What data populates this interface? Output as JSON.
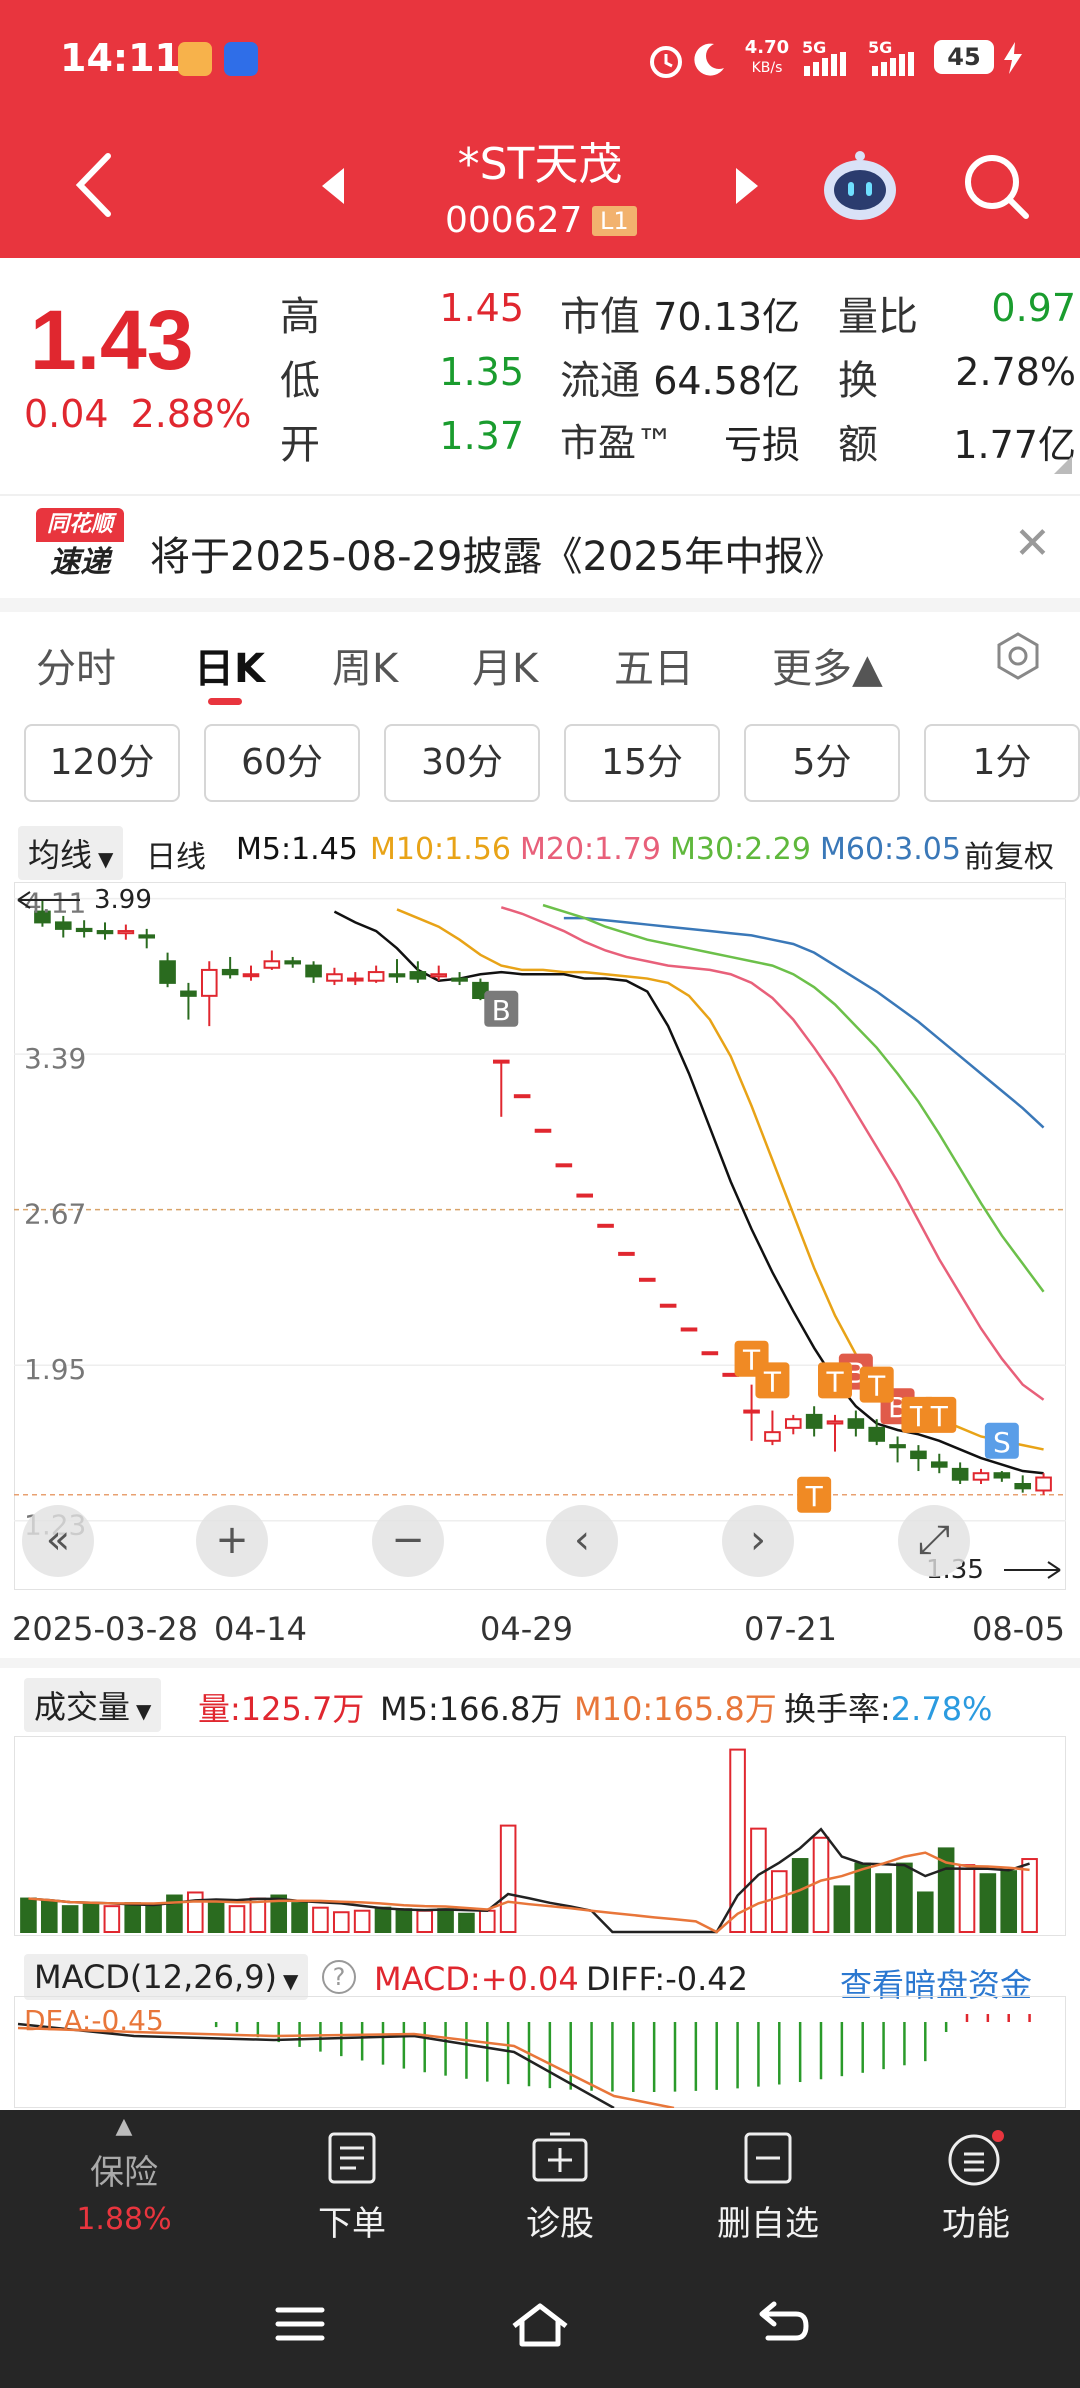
{
  "status_bar": {
    "time": "14:11",
    "network_speed_value": "4.70",
    "network_speed_unit": "KB/s",
    "sim1": "5G",
    "sim2": "5G",
    "battery": "45"
  },
  "header": {
    "stock_name": "*ST天茂",
    "stock_code": "000627",
    "level_badge": "L1"
  },
  "quote": {
    "price": "1.43",
    "change": "0.04",
    "change_pct": "2.88%",
    "rows": [
      {
        "l1": "高",
        "v1": "1.45",
        "c1": "red",
        "l2": "市值",
        "v2": "70.13亿",
        "l3": "量比",
        "v3": "0.97",
        "c3": "green"
      },
      {
        "l1": "低",
        "v1": "1.35",
        "c1": "green",
        "l2": "流通",
        "v2": "64.58亿",
        "l3": "换",
        "v3": "2.78%",
        "c3": "dark"
      },
      {
        "l1": "开",
        "v1": "1.37",
        "c1": "green",
        "l2": "市盈™",
        "v2": "亏损",
        "l3": "额",
        "v3": "1.77亿",
        "c3": "dark"
      }
    ]
  },
  "news": {
    "logo_top": "同花顺",
    "logo_bottom": "速递",
    "text": "将于2025-08-29披露《2025年中报》"
  },
  "tabs": [
    "分时",
    "日K",
    "周K",
    "月K",
    "五日",
    "更多▲"
  ],
  "active_tab": "日K",
  "periods": [
    "120分",
    "60分",
    "30分",
    "15分",
    "5分",
    "1分"
  ],
  "indicators": {
    "ma_dropdown": "均线",
    "period_label": "日线",
    "m5": "M5:1.45",
    "m10": "M10:1.56",
    "m20": "M20:1.79",
    "m30": "M30:2.29",
    "m60": "M60:3.05",
    "adjust": "前复权",
    "colors": {
      "m5": "#111111",
      "m10": "#e8a317",
      "m20": "#e8607a",
      "m30": "#6cc04a",
      "m60": "#3a78b8"
    }
  },
  "chart_data": {
    "type": "candlestick",
    "y_ticks": [
      "4.11",
      "3.39",
      "2.67",
      "1.95",
      "1.23"
    ],
    "max_label": "3.99",
    "min_label": "1.35",
    "x_labels": [
      "2025-03-28",
      "04-14",
      "04-29",
      "07-21",
      "08-05"
    ],
    "markers": [
      "B",
      "T",
      "T",
      "T",
      "B",
      "T",
      "B",
      "T",
      "T",
      "T",
      "S"
    ],
    "candles": [
      [
        4.05,
        4.0,
        4.1,
        3.98
      ],
      [
        4.0,
        3.97,
        4.03,
        3.93
      ],
      [
        3.97,
        3.96,
        4.01,
        3.93
      ],
      [
        3.96,
        3.95,
        4.0,
        3.92
      ],
      [
        3.95,
        3.96,
        3.99,
        3.92
      ],
      [
        3.94,
        3.93,
        3.97,
        3.88
      ],
      [
        3.82,
        3.72,
        3.86,
        3.7
      ],
      [
        3.68,
        3.66,
        3.72,
        3.55
      ],
      [
        3.66,
        3.78,
        3.82,
        3.52
      ],
      [
        3.78,
        3.76,
        3.84,
        3.74
      ],
      [
        3.76,
        3.76,
        3.8,
        3.73
      ],
      [
        3.79,
        3.82,
        3.87,
        3.78
      ],
      [
        3.82,
        3.81,
        3.84,
        3.79
      ],
      [
        3.8,
        3.75,
        3.82,
        3.72
      ],
      [
        3.73,
        3.76,
        3.79,
        3.71
      ],
      [
        3.74,
        3.74,
        3.77,
        3.71
      ],
      [
        3.73,
        3.77,
        3.8,
        3.72
      ],
      [
        3.76,
        3.75,
        3.83,
        3.72
      ],
      [
        3.77,
        3.74,
        3.82,
        3.72
      ],
      [
        3.75,
        3.76,
        3.8,
        3.73
      ],
      [
        3.74,
        3.73,
        3.77,
        3.71
      ],
      [
        3.72,
        3.65,
        3.74,
        3.64
      ],
      [
        3.36,
        3.36,
        3.36,
        3.1
      ],
      [
        3.2,
        3.2,
        3.2,
        3.2
      ],
      [
        3.04,
        3.04,
        3.04,
        3.04
      ],
      [
        2.88,
        2.88,
        2.88,
        2.88
      ],
      [
        2.74,
        2.74,
        2.74,
        2.74
      ],
      [
        2.6,
        2.6,
        2.6,
        2.6
      ],
      [
        2.47,
        2.47,
        2.47,
        2.47
      ],
      [
        2.35,
        2.35,
        2.35,
        2.35
      ],
      [
        2.23,
        2.23,
        2.23,
        2.23
      ],
      [
        2.12,
        2.12,
        2.12,
        2.12
      ],
      [
        2.01,
        2.01,
        2.01,
        2.01
      ],
      [
        1.91,
        1.91,
        1.91,
        1.91
      ],
      [
        1.74,
        1.74,
        1.86,
        1.6
      ],
      [
        1.6,
        1.64,
        1.74,
        1.58
      ],
      [
        1.66,
        1.7,
        1.72,
        1.63
      ],
      [
        1.72,
        1.66,
        1.76,
        1.62
      ],
      [
        1.68,
        1.69,
        1.72,
        1.55
      ],
      [
        1.7,
        1.66,
        1.74,
        1.62
      ],
      [
        1.66,
        1.6,
        1.7,
        1.58
      ],
      [
        1.58,
        1.57,
        1.62,
        1.5
      ],
      [
        1.55,
        1.52,
        1.58,
        1.46
      ],
      [
        1.5,
        1.48,
        1.54,
        1.45
      ],
      [
        1.47,
        1.42,
        1.5,
        1.4
      ],
      [
        1.42,
        1.45,
        1.47,
        1.4
      ],
      [
        1.45,
        1.43,
        1.46,
        1.41
      ],
      [
        1.4,
        1.38,
        1.44,
        1.36
      ],
      [
        1.37,
        1.43,
        1.45,
        1.35
      ]
    ],
    "ma": {
      "m5": [
        4.05,
        4.0,
        3.96,
        3.88,
        3.78,
        3.73,
        3.74,
        3.76,
        3.77,
        3.76,
        3.76,
        3.76,
        3.74,
        3.74,
        3.73,
        3.68,
        3.52,
        3.3,
        3.05,
        2.8,
        2.58,
        2.38,
        2.2,
        2.03,
        1.88,
        1.76,
        1.68,
        1.65,
        1.63,
        1.6,
        1.56,
        1.52,
        1.49,
        1.46,
        1.45
      ],
      "m10": [
        4.06,
        4.02,
        3.98,
        3.92,
        3.85,
        3.8,
        3.78,
        3.78,
        3.77,
        3.77,
        3.76,
        3.75,
        3.74,
        3.72,
        3.66,
        3.55,
        3.38,
        3.15,
        2.9,
        2.65,
        2.4,
        2.18,
        2.0,
        1.88,
        1.8,
        1.74,
        1.7,
        1.66,
        1.62,
        1.6,
        1.58,
        1.56
      ],
      "m20": [
        4.07,
        4.04,
        4.0,
        3.96,
        3.91,
        3.87,
        3.84,
        3.82,
        3.8,
        3.79,
        3.78,
        3.76,
        3.72,
        3.65,
        3.55,
        3.42,
        3.28,
        3.12,
        2.96,
        2.8,
        2.62,
        2.44,
        2.28,
        2.12,
        1.98,
        1.86,
        1.79
      ],
      "m30": [
        4.08,
        4.05,
        4.02,
        3.98,
        3.95,
        3.92,
        3.9,
        3.88,
        3.86,
        3.84,
        3.82,
        3.8,
        3.76,
        3.7,
        3.62,
        3.52,
        3.42,
        3.3,
        3.17,
        3.02,
        2.86,
        2.7,
        2.55,
        2.42,
        2.29
      ],
      "m60": [
        4.02,
        4.02,
        4.01,
        4.0,
        3.99,
        3.98,
        3.97,
        3.96,
        3.95,
        3.94,
        3.92,
        3.9,
        3.86,
        3.8,
        3.74,
        3.68,
        3.61,
        3.54,
        3.46,
        3.38,
        3.3,
        3.22,
        3.14,
        3.05
      ]
    }
  },
  "volume": {
    "dropdown": "成交量",
    "vol": "量:125.7万",
    "m5": "M5:166.8万",
    "m10": "M10:165.8万",
    "turnover_label": "换手率:",
    "turnover_value": "2.78%",
    "bars": [
      22,
      20,
      17,
      18,
      17,
      19,
      18,
      24,
      26,
      20,
      17,
      22,
      24,
      19,
      16,
      13,
      14,
      16,
      15,
      14,
      15,
      12,
      14,
      70,
      0,
      0,
      0,
      0,
      0,
      0,
      0,
      0,
      0,
      0,
      120,
      68,
      40,
      48,
      62,
      30,
      45,
      38,
      45,
      26,
      55,
      44,
      38,
      40,
      48
    ]
  },
  "macd": {
    "label": "MACD(12,26,9)",
    "macd": "MACD:+0.04",
    "diff": "DIFF:-0.42",
    "link": "查看暗盘资金",
    "dea": "DEA:-0.45"
  },
  "bottom_nav": [
    {
      "label": "保险",
      "sub": "1.88%"
    },
    {
      "label": "下单"
    },
    {
      "label": "诊股"
    },
    {
      "label": "删自选"
    },
    {
      "label": "功能"
    }
  ]
}
